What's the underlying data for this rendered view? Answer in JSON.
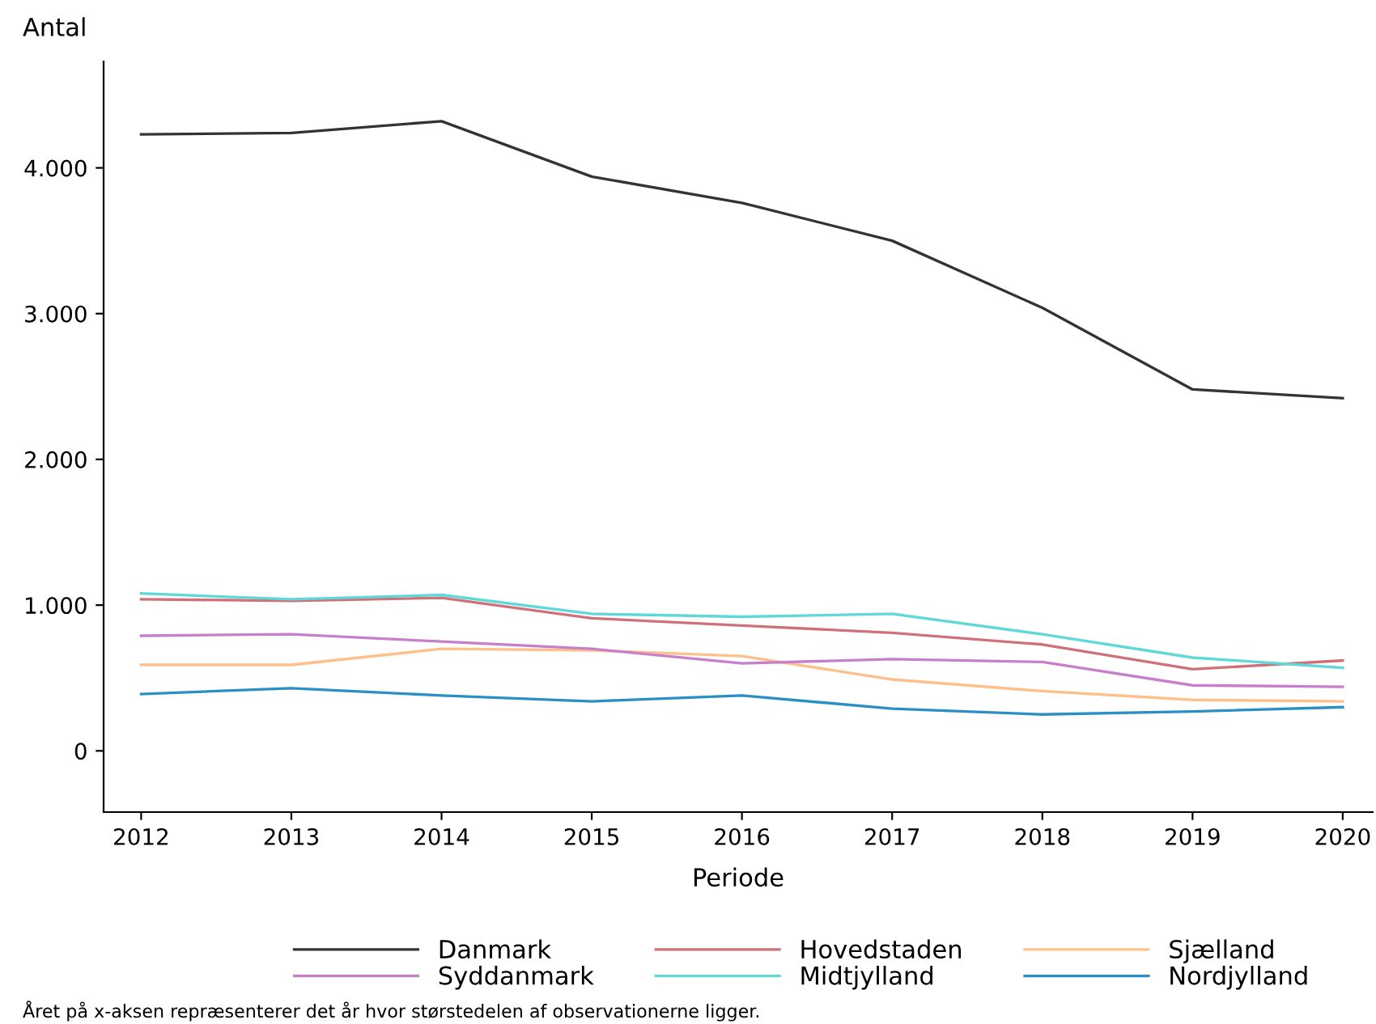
{
  "chart_data": {
    "type": "line",
    "xlabel": "Periode",
    "ylabel": "Antal",
    "x": [
      2012,
      2013,
      2014,
      2015,
      2016,
      2017,
      2018,
      2019,
      2020
    ],
    "series": [
      {
        "name": "Danmark",
        "color": "#333333",
        "values": [
          4230,
          4240,
          4320,
          3940,
          3760,
          3500,
          3040,
          2480,
          2420
        ]
      },
      {
        "name": "Hovedstaden",
        "color": "#d0717a",
        "values": [
          1040,
          1030,
          1050,
          910,
          860,
          810,
          730,
          560,
          620
        ]
      },
      {
        "name": "Sjælland",
        "color": "#fdc08a",
        "values": [
          590,
          590,
          700,
          690,
          650,
          490,
          410,
          350,
          340
        ]
      },
      {
        "name": "Syddanmark",
        "color": "#c77fcc",
        "values": [
          790,
          800,
          750,
          700,
          600,
          630,
          610,
          450,
          440
        ]
      },
      {
        "name": "Midtjylland",
        "color": "#5fd8d8",
        "values": [
          1080,
          1040,
          1070,
          940,
          920,
          940,
          800,
          640,
          570
        ]
      },
      {
        "name": "Nordjylland",
        "color": "#2a8fc4",
        "values": [
          390,
          430,
          380,
          340,
          380,
          290,
          250,
          270,
          300
        ]
      }
    ],
    "xlim": [
      2011.75,
      2020.2
    ],
    "xticks": [
      2012,
      2013,
      2014,
      2015,
      2016,
      2017,
      2018,
      2019,
      2020
    ],
    "ylim": [
      -420,
      4730
    ],
    "yticks": [
      {
        "value": 0,
        "label": "0"
      },
      {
        "value": 1000,
        "label": "1.000"
      },
      {
        "value": 2000,
        "label": "2.000"
      },
      {
        "value": 3000,
        "label": "3.000"
      },
      {
        "value": 4000,
        "label": "4.000"
      }
    ],
    "grid": false,
    "legend": "bottom",
    "marker": "none",
    "line_style": "solid",
    "annotations": [
      "Året på x-aksen repræsenterer det år hvor størstedelen af observationerne ligger."
    ]
  }
}
